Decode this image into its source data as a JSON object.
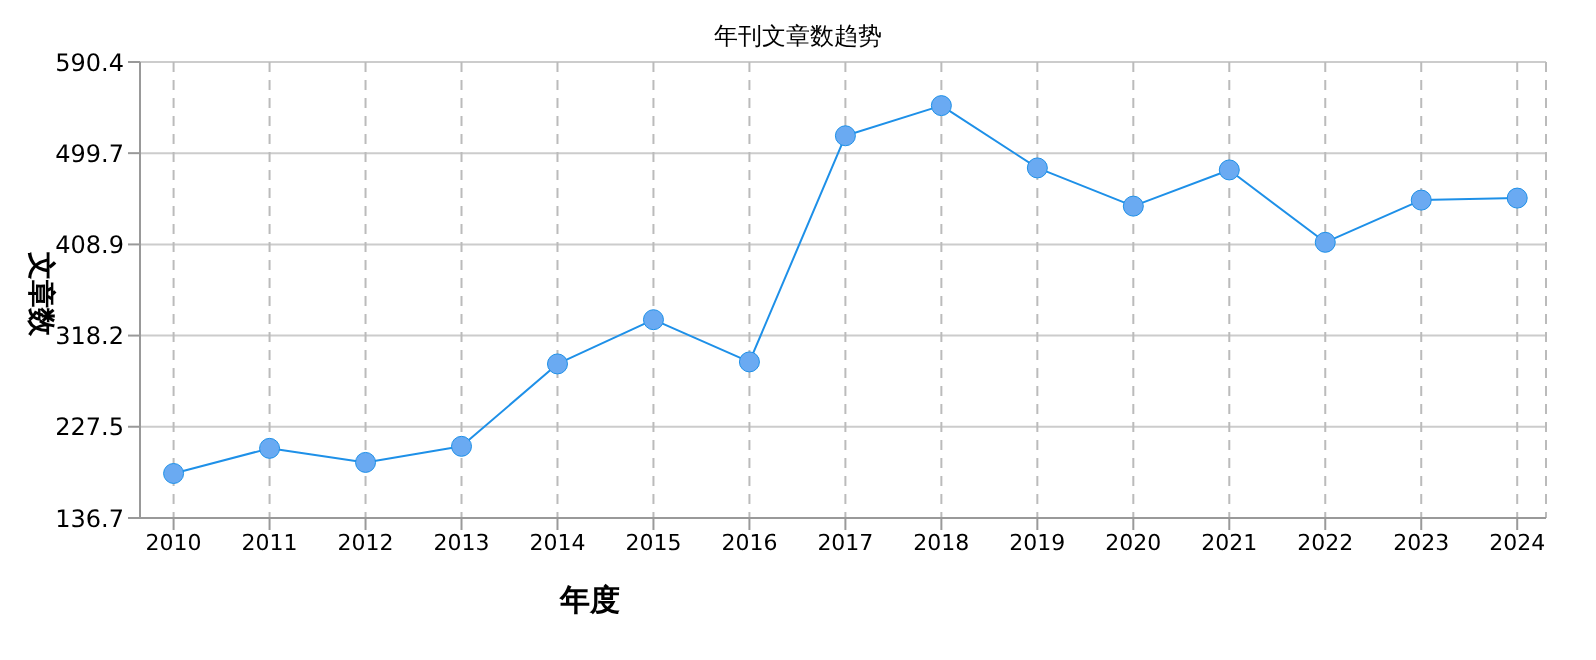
{
  "chart_data": {
    "type": "line",
    "title": "年刊文章数趋势",
    "xlabel": "年度",
    "ylabel": "文章数",
    "categories": [
      "2010",
      "2011",
      "2012",
      "2013",
      "2014",
      "2015",
      "2016",
      "2017",
      "2018",
      "2019",
      "2020",
      "2021",
      "2022",
      "2023",
      "2024"
    ],
    "series": [
      {
        "color": "#1e90e8",
        "values": [
          181,
          206,
          192,
          208,
          290,
          334,
          292,
          517,
          547,
          485,
          447,
          483,
          411,
          453,
          455
        ]
      }
    ],
    "ylim": [
      136.7,
      590.4
    ],
    "yticks": [
      136.7,
      227.5,
      318.2,
      408.9,
      499.7,
      590.4
    ],
    "grid": true,
    "marker": "circle",
    "line_style": "solid"
  }
}
